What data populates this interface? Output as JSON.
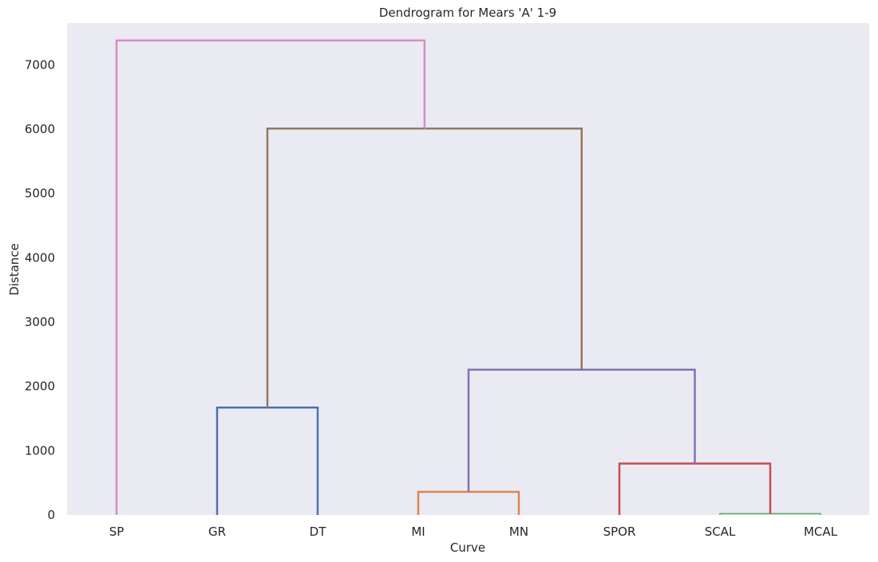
{
  "chart_data": {
    "type": "dendrogram",
    "title": "Dendrogram for Mears 'A' 1-9",
    "xlabel": "Curve",
    "ylabel": "Distance",
    "leaves": [
      "SP",
      "GR",
      "DT",
      "MI",
      "MN",
      "SPOR",
      "SCAL",
      "MCAL"
    ],
    "ylim": [
      0,
      7650
    ],
    "yticks": [
      0,
      1000,
      2000,
      3000,
      4000,
      5000,
      6000,
      7000
    ],
    "grid": false,
    "background_color": "#eaeaf2",
    "merges": [
      {
        "children": [
          "SCAL",
          "MCAL"
        ],
        "height": 20,
        "color": "#55a868"
      },
      {
        "children": [
          "MI",
          "MN"
        ],
        "height": 360,
        "color": "#dd8452"
      },
      {
        "children": [
          "SPOR",
          "SCAL+MCAL"
        ],
        "height": 800,
        "color": "#c44e52"
      },
      {
        "children": [
          "GR",
          "DT"
        ],
        "height": 1670,
        "color": "#4c72b0"
      },
      {
        "children": [
          "MI+MN",
          "SPOR+SCAL+MCAL"
        ],
        "height": 2260,
        "color": "#8172b3"
      },
      {
        "children": [
          "GR+DT",
          "MI+MN+SPOR+SCAL+MCAL"
        ],
        "height": 6010,
        "color": "#937860"
      },
      {
        "children": [
          "SP",
          "GR+DT+MI+MN+SPOR+SCAL+MCAL"
        ],
        "height": 7380,
        "color": "#da8bc3"
      }
    ]
  }
}
